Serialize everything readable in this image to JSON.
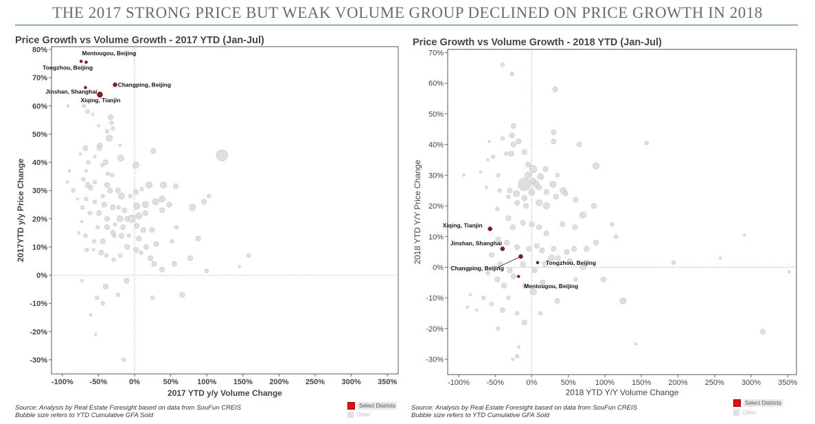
{
  "banner": "THE 2017 STRONG PRICE BUT WEAK VOLUME GROUP DECLINED ON PRICE GROWTH IN 2018",
  "colors": {
    "selected": "#8b1a1a",
    "other": "#d9d9d9",
    "other_stroke": "#c4c4c4",
    "axis": "#888888",
    "legend_selected": "#e01010"
  },
  "charts": [
    {
      "title": "Price Growth vs Volume Growth - 2017 YTD (Jan-Jul)",
      "source_line1": "Source: Analysis by Real Estate Foresight based on data from SouFun CREIS",
      "source_line2": "Bubble size refers to YTD Cumulative GFA Sold",
      "legend_selected": "Select Districts",
      "legend_other": "Other"
    },
    {
      "title": "Price Growth vs Volume Growth - 2018 YTD (Jan-Jul)",
      "source_line1": "Source: Analysis by Real Estate Foresight based on data from SouFun CREIS",
      "source_line2": "Bubble size refers to YTD Cumulative GFA Sold",
      "legend_selected": "Select Districts",
      "legend_other": "Other"
    }
  ],
  "chart_data": [
    {
      "type": "scatter",
      "title": "Price Growth vs Volume Growth - 2017 YTD (Jan-Jul)",
      "xlabel": "2017 YTD y/y Volume Change",
      "ylabel": "2017YTD y/y Price Change",
      "xlim": [
        -115,
        365
      ],
      "ylim": [
        -35,
        81
      ],
      "xticks": [
        -100,
        -50,
        0,
        50,
        100,
        150,
        200,
        250,
        300,
        350
      ],
      "xtick_labels": [
        "-100%",
        "-50%",
        "0%",
        "50%",
        "100%",
        "150%",
        "200%",
        "250%",
        "300%",
        "350%"
      ],
      "yticks": [
        -30,
        -20,
        -10,
        0,
        10,
        20,
        30,
        40,
        50,
        60,
        70,
        80
      ],
      "ytick_labels": [
        "-30%",
        "-20%",
        "-10%",
        "0%",
        "10%",
        "20%",
        "30%",
        "40%",
        "50%",
        "60%",
        "70%",
        "80%"
      ],
      "reference_lines": {
        "x": 0,
        "y": 0
      },
      "selected": [
        {
          "label": "Mentougou, Beijing",
          "x": -67,
          "y": 75.5,
          "size": 1
        },
        {
          "label": "Tongzhou, Beijing",
          "x": -74,
          "y": 75.8,
          "size": 1
        },
        {
          "label": "Changping, Beijing",
          "x": -27,
          "y": 67.5,
          "size": 2
        },
        {
          "label": "Jinshan, Shanghai",
          "x": -68,
          "y": 66.5,
          "size": 1
        },
        {
          "label": "Xiqing, Tianjin",
          "x": -48,
          "y": 64,
          "size": 3
        }
      ],
      "other": [
        [
          -92,
          60,
          1
        ],
        [
          -70,
          60,
          2
        ],
        [
          -65,
          58,
          2
        ],
        [
          -58,
          57,
          1
        ],
        [
          -33,
          56,
          3
        ],
        [
          -32,
          54,
          2
        ],
        [
          -30,
          52,
          2
        ],
        [
          -50,
          53,
          1
        ],
        [
          -38,
          51,
          2
        ],
        [
          -35,
          48.5,
          4
        ],
        [
          -48,
          46,
          3
        ],
        [
          -49,
          45,
          3
        ],
        [
          -68,
          45,
          3
        ],
        [
          -20,
          46,
          1
        ],
        [
          26,
          44,
          3
        ],
        [
          -75,
          43,
          1
        ],
        [
          -55,
          42,
          1
        ],
        [
          -19,
          41.5,
          4
        ],
        [
          -40,
          40,
          3
        ],
        [
          -45,
          39,
          2
        ],
        [
          2,
          39,
          4
        ],
        [
          -64,
          40,
          2
        ],
        [
          -67,
          37,
          1
        ],
        [
          -90,
          37,
          1
        ],
        [
          121,
          42.5,
          8
        ],
        [
          -37,
          36,
          2
        ],
        [
          -31,
          35.5,
          2
        ],
        [
          -65,
          32,
          3
        ],
        [
          -61,
          31,
          3
        ],
        [
          -71,
          34,
          2
        ],
        [
          -55,
          33,
          2
        ],
        [
          -38,
          32,
          3
        ],
        [
          -23,
          30,
          3
        ],
        [
          -18,
          28,
          4
        ],
        [
          -6,
          28,
          2
        ],
        [
          2,
          29.5,
          3
        ],
        [
          -85,
          30,
          2
        ],
        [
          -93,
          33,
          1
        ],
        [
          -67,
          27,
          2
        ],
        [
          -44,
          28,
          2
        ],
        [
          -34,
          30,
          3
        ],
        [
          10,
          30.5,
          2
        ],
        [
          20,
          32,
          4
        ],
        [
          40,
          32,
          4
        ],
        [
          57,
          31.5,
          3
        ],
        [
          -79,
          27,
          1
        ],
        [
          -55,
          26,
          2
        ],
        [
          -42,
          25,
          3
        ],
        [
          -30,
          24,
          3
        ],
        [
          -22,
          24,
          2
        ],
        [
          -14,
          23,
          3
        ],
        [
          3,
          24.5,
          4
        ],
        [
          15,
          25,
          4
        ],
        [
          29,
          26,
          4
        ],
        [
          38,
          27,
          4
        ],
        [
          48,
          25,
          3
        ],
        [
          -72,
          24,
          2
        ],
        [
          -62,
          22,
          2
        ],
        [
          -49,
          22,
          3
        ],
        [
          -38,
          20,
          3
        ],
        [
          -27,
          18,
          2
        ],
        [
          -20,
          20,
          4
        ],
        [
          -10,
          20,
          3
        ],
        [
          -4,
          20,
          5
        ],
        [
          6,
          21,
          4
        ],
        [
          15,
          22,
          3
        ],
        [
          38,
          23,
          3
        ],
        [
          80,
          24,
          4
        ],
        [
          96,
          26,
          3
        ],
        [
          103,
          28,
          2
        ],
        [
          -73,
          19,
          1
        ],
        [
          -51,
          17,
          2
        ],
        [
          -38,
          17,
          3
        ],
        [
          -30,
          15,
          3
        ],
        [
          -16,
          17,
          3
        ],
        [
          3,
          17.5,
          3
        ],
        [
          12,
          16,
          3
        ],
        [
          24,
          16,
          3
        ],
        [
          58,
          17,
          2
        ],
        [
          -77,
          15,
          1
        ],
        [
          -68,
          14,
          2
        ],
        [
          -56,
          12,
          2
        ],
        [
          -44,
          12,
          3
        ],
        [
          -28,
          14,
          2
        ],
        [
          -18,
          14,
          3
        ],
        [
          -8,
          14,
          2
        ],
        [
          6,
          13,
          3
        ],
        [
          16,
          10,
          3
        ],
        [
          30,
          11,
          3
        ],
        [
          52,
          12,
          2
        ],
        [
          -66,
          9,
          2
        ],
        [
          -57,
          9,
          1
        ],
        [
          -46,
          8,
          3
        ],
        [
          -39,
          7,
          2
        ],
        [
          -29,
          5.5,
          2
        ],
        [
          -20,
          7,
          2
        ],
        [
          -10,
          10,
          3
        ],
        [
          2,
          9,
          3
        ],
        [
          9,
          8,
          2
        ],
        [
          22,
          6,
          3
        ],
        [
          27,
          4,
          3
        ],
        [
          38,
          2,
          3
        ],
        [
          55,
          4,
          3
        ],
        [
          77,
          6,
          3
        ],
        [
          88,
          13,
          3
        ],
        [
          100,
          1.5,
          2
        ],
        [
          145,
          3,
          1
        ],
        [
          158,
          7,
          2
        ],
        [
          -73,
          -2,
          1
        ],
        [
          -52,
          -8,
          2
        ],
        [
          -44,
          -10,
          2
        ],
        [
          -40,
          -4,
          3
        ],
        [
          -23,
          -7,
          2
        ],
        [
          -11,
          -2,
          3
        ],
        [
          25,
          -8,
          2
        ],
        [
          66,
          -7,
          3
        ],
        [
          -61,
          -14,
          1
        ],
        [
          -54,
          -21,
          1
        ],
        [
          -15,
          -30,
          2
        ]
      ]
    },
    {
      "type": "scatter",
      "title": "Price Growth vs Volume Growth - 2018 YTD (Jan-Jul)",
      "xlabel": "2018 YTD Y/Y Volume Change",
      "ylabel": "2018 YTD Y/Y Price Change",
      "xlim": [
        -115,
        362
      ],
      "ylim": [
        -35,
        71
      ],
      "xticks": [
        -100,
        -50,
        0,
        50,
        100,
        150,
        200,
        250,
        300,
        350
      ],
      "xtick_labels": [
        "-100%",
        "-50%",
        "0%",
        "50%",
        "100%",
        "150%",
        "200%",
        "250%",
        "300%",
        "350%"
      ],
      "yticks": [
        -30,
        -20,
        -10,
        0,
        10,
        20,
        30,
        40,
        50,
        60,
        70
      ],
      "ytick_labels": [
        "-30%",
        "-20%",
        "-10%",
        "0%",
        "10%",
        "20%",
        "30%",
        "40%",
        "50%",
        "60%",
        "70%"
      ],
      "reference_lines": {
        "x": 0,
        "y": 0
      },
      "selected": [
        {
          "label": "Xiqing, Tianjin",
          "x": -57,
          "y": 12.5,
          "size": 2
        },
        {
          "label": "Jinshan, Shanghai",
          "x": -40,
          "y": 6,
          "size": 2
        },
        {
          "label": "Changping, Beijing",
          "x": -15,
          "y": 3.5,
          "size": 2
        },
        {
          "label": "Tongzhou, Beijing",
          "x": 8,
          "y": 1.5,
          "size": 1
        },
        {
          "label": "Mentougou, Beijing",
          "x": -18,
          "y": -3,
          "size": 1
        }
      ],
      "other": [
        [
          -40,
          66,
          2
        ],
        [
          -27,
          63,
          2
        ],
        [
          32,
          58,
          3
        ],
        [
          -25,
          46,
          3
        ],
        [
          -27,
          43,
          3
        ],
        [
          -25,
          40,
          3
        ],
        [
          -40,
          42,
          2
        ],
        [
          -35,
          37,
          2
        ],
        [
          -28,
          37,
          3
        ],
        [
          -18,
          41,
          3
        ],
        [
          -10,
          37.5,
          3
        ],
        [
          -5,
          33.5,
          3
        ],
        [
          2,
          32,
          5
        ],
        [
          -5,
          30,
          4
        ],
        [
          -10,
          27,
          9
        ],
        [
          2,
          28,
          4
        ],
        [
          6,
          27,
          4
        ],
        [
          12,
          29.5,
          4
        ],
        [
          19,
          32,
          3
        ],
        [
          -30,
          25,
          3
        ],
        [
          -21,
          24,
          4
        ],
        [
          -10,
          22.5,
          3
        ],
        [
          0,
          24.5,
          4
        ],
        [
          10,
          26,
          3
        ],
        [
          20,
          24.5,
          3
        ],
        [
          29,
          27,
          4
        ],
        [
          35,
          30,
          2
        ],
        [
          43,
          25,
          4
        ],
        [
          -46,
          30,
          2
        ],
        [
          -44,
          25,
          2
        ],
        [
          -32,
          23,
          2
        ],
        [
          -20,
          21,
          3
        ],
        [
          -8,
          20,
          3
        ],
        [
          10,
          21,
          4
        ],
        [
          20,
          20,
          4
        ],
        [
          33,
          23,
          3
        ],
        [
          46,
          24,
          3
        ],
        [
          60,
          22,
          3
        ],
        [
          70,
          17,
          4
        ],
        [
          85,
          20,
          3
        ],
        [
          88,
          33,
          4
        ],
        [
          30,
          41,
          3
        ],
        [
          30,
          44,
          3
        ],
        [
          65,
          40,
          3
        ],
        [
          157,
          40.5,
          2
        ],
        [
          -58,
          41,
          1
        ],
        [
          -53,
          36,
          2
        ],
        [
          -60,
          35,
          1
        ],
        [
          -70,
          31,
          1
        ],
        [
          -62,
          26,
          1
        ],
        [
          -47,
          19,
          2
        ],
        [
          -32,
          16,
          3
        ],
        [
          -26,
          13,
          3
        ],
        [
          -12,
          14.5,
          3
        ],
        [
          0,
          14,
          3
        ],
        [
          10,
          13,
          3
        ],
        [
          20,
          11,
          3
        ],
        [
          42,
          14,
          3
        ],
        [
          59,
          13,
          3
        ],
        [
          -46,
          9,
          3
        ],
        [
          -34,
          8,
          3
        ],
        [
          -20,
          6.5,
          3
        ],
        [
          -4,
          6,
          3
        ],
        [
          7,
          7,
          3
        ],
        [
          14,
          5.5,
          3
        ],
        [
          30,
          6,
          3
        ],
        [
          48,
          5,
          3
        ],
        [
          58,
          6,
          3
        ],
        [
          75,
          6,
          3
        ],
        [
          88,
          8,
          3
        ],
        [
          110,
          14,
          2
        ],
        [
          115,
          10,
          2
        ],
        [
          -55,
          4,
          3
        ],
        [
          -43,
          1,
          3
        ],
        [
          -30,
          -1,
          3
        ],
        [
          -12,
          1,
          3
        ],
        [
          4,
          -1,
          3
        ],
        [
          18,
          1,
          3
        ],
        [
          27,
          3,
          4
        ],
        [
          36,
          3,
          3
        ],
        [
          52,
          2,
          3
        ],
        [
          70,
          0,
          3
        ],
        [
          -60,
          -2,
          2
        ],
        [
          -47,
          -4,
          3
        ],
        [
          -38,
          -6,
          3
        ],
        [
          -25,
          -3,
          3
        ],
        [
          -9,
          -6,
          3
        ],
        [
          2,
          -8,
          4
        ],
        [
          15,
          -5,
          3
        ],
        [
          35,
          -11,
          3
        ],
        [
          60,
          -4,
          2
        ],
        [
          98,
          -4,
          3
        ],
        [
          -66,
          -10,
          2
        ],
        [
          -55,
          -12,
          2
        ],
        [
          -40,
          -14,
          3
        ],
        [
          -32,
          -10,
          2
        ],
        [
          -20,
          -15,
          2
        ],
        [
          -10,
          -18,
          3
        ],
        [
          12,
          -15,
          2
        ],
        [
          -75,
          -14,
          1
        ],
        [
          -46,
          -20,
          2
        ],
        [
          -18,
          -26,
          1
        ],
        [
          -20,
          -29,
          2
        ],
        [
          -26,
          -30,
          1
        ],
        [
          125,
          -11,
          4
        ],
        [
          142,
          -25,
          1
        ],
        [
          194,
          1.5,
          2
        ],
        [
          258,
          3,
          1
        ],
        [
          291,
          10.5,
          1
        ],
        [
          316,
          -21,
          3
        ],
        [
          352,
          -1.5,
          1
        ],
        [
          -84,
          -9,
          1
        ],
        [
          -88,
          -13,
          1
        ],
        [
          -93,
          30,
          1
        ]
      ]
    }
  ]
}
